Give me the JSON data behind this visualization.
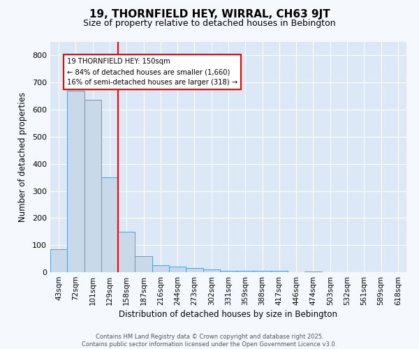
{
  "title": "19, THORNFIELD HEY, WIRRAL, CH63 9JT",
  "subtitle": "Size of property relative to detached houses in Bebington",
  "xlabel": "Distribution of detached houses by size in Bebington",
  "ylabel": "Number of detached properties",
  "bar_color": "#c8d9ea",
  "bar_edge_color": "#5b9bd5",
  "bg_color": "#dce8f5",
  "plot_bg_color": "#dce8f5",
  "fig_bg_color": "#f5f8fc",
  "grid_color": "#ffffff",
  "categories": [
    "43sqm",
    "72sqm",
    "101sqm",
    "129sqm",
    "158sqm",
    "187sqm",
    "216sqm",
    "244sqm",
    "273sqm",
    "302sqm",
    "331sqm",
    "359sqm",
    "388sqm",
    "417sqm",
    "446sqm",
    "474sqm",
    "503sqm",
    "532sqm",
    "561sqm",
    "589sqm",
    "618sqm"
  ],
  "values": [
    85,
    670,
    635,
    350,
    150,
    60,
    25,
    20,
    15,
    10,
    5,
    5,
    5,
    5,
    0,
    2,
    0,
    0,
    0,
    0,
    0
  ],
  "red_line_x": 3.5,
  "annotation_line1": "19 THORNFIELD HEY: 150sqm",
  "annotation_line2": "← 84% of detached houses are smaller (1,660)",
  "annotation_line3": "16% of semi-detached houses are larger (318) →",
  "ylim": [
    0,
    850
  ],
  "yticks": [
    0,
    100,
    200,
    300,
    400,
    500,
    600,
    700,
    800
  ],
  "title_fontsize": 11,
  "subtitle_fontsize": 9,
  "footer_line1": "Contains HM Land Registry data © Crown copyright and database right 2025.",
  "footer_line2": "Contains public sector information licensed under the Open Government Licence v3.0."
}
